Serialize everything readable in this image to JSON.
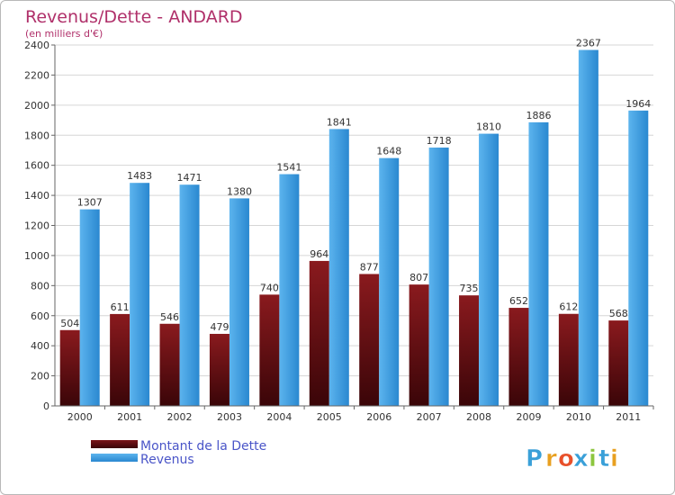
{
  "chart_data": {
    "type": "bar",
    "title": "Revenus/Dette - ANDARD",
    "subtitle": "(en milliers d'€)",
    "categories": [
      "2000",
      "2001",
      "2002",
      "2003",
      "2004",
      "2005",
      "2006",
      "2007",
      "2008",
      "2009",
      "2010",
      "2011"
    ],
    "series": [
      {
        "name": "Montant de la Dette",
        "values": [
          504,
          611,
          546,
          479,
          740,
          964,
          877,
          807,
          735,
          652,
          612,
          568
        ],
        "color": "#7a1418"
      },
      {
        "name": "Revenus",
        "values": [
          1307,
          1483,
          1471,
          1380,
          1541,
          1841,
          1648,
          1718,
          1810,
          1886,
          2367,
          1964
        ],
        "color": "#4aa6e8"
      }
    ],
    "ylim": [
      0,
      2400
    ],
    "yticks": [
      0,
      200,
      400,
      600,
      800,
      1000,
      1200,
      1400,
      1600,
      1800,
      2000,
      2200,
      2400
    ],
    "grid": true,
    "legend_position": "bottom-left"
  },
  "logo": {
    "text": "Proxiti",
    "letters": [
      "P",
      "r",
      "o",
      "x",
      "i",
      "t",
      "i"
    ],
    "colors": [
      "#3aa0d8",
      "#e8a020",
      "#e8502a",
      "#3aa0d8",
      "#8cc63f",
      "#3aa0d8",
      "#e8a020"
    ]
  }
}
